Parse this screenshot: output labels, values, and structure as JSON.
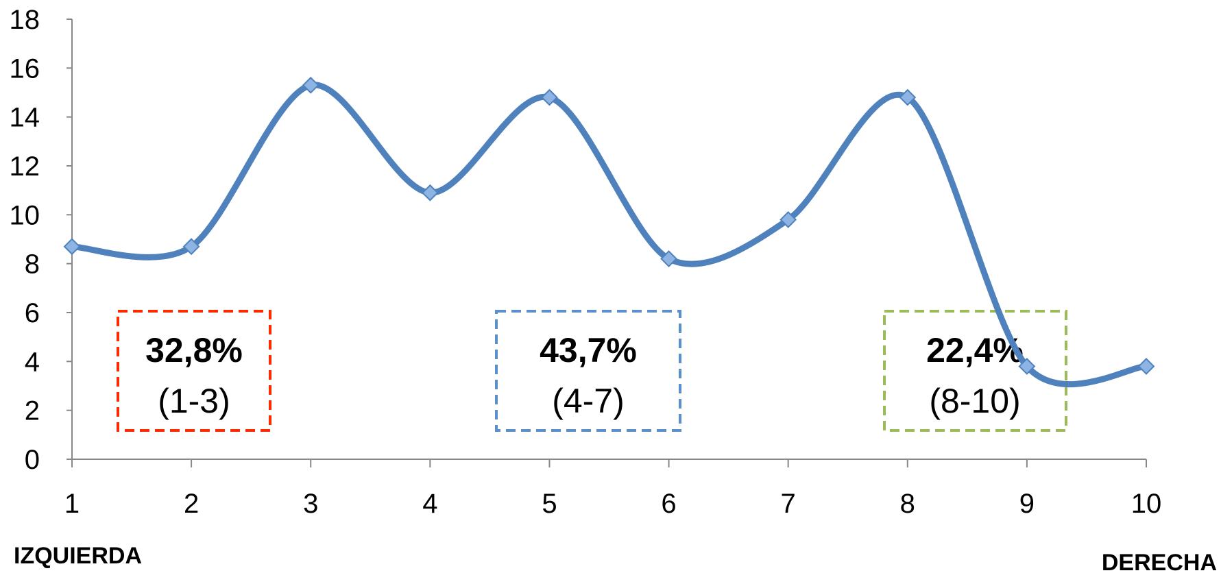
{
  "chart_data": {
    "type": "line",
    "x": [
      1,
      2,
      3,
      4,
      5,
      6,
      7,
      8,
      9,
      10
    ],
    "series": [
      {
        "values": [
          8.7,
          8.7,
          15.3,
          10.9,
          14.8,
          8.2,
          9.8,
          14.8,
          3.8,
          3.8
        ],
        "color": "#4F81BD",
        "marker": "diamond",
        "smooth": true
      }
    ],
    "ylim": [
      0,
      18
    ],
    "xlim": [
      1,
      10
    ],
    "y_ticks": [
      "0",
      "2",
      "4",
      "6",
      "8",
      "10",
      "12",
      "14",
      "16",
      "18"
    ],
    "x_ticks": [
      "1",
      "2",
      "3",
      "4",
      "5",
      "6",
      "7",
      "8",
      "9",
      "10"
    ],
    "grid": false,
    "annotations": [
      {
        "percent": "32,8%",
        "range": "(1-3)",
        "color": "#FF2A00"
      },
      {
        "percent": "43,7%",
        "range": "(4-7)",
        "color": "#5B8FCC"
      },
      {
        "percent": "22,4%",
        "range": "(8-10)",
        "color": "#9BBB59"
      }
    ],
    "axis_end_labels": {
      "left": "IZQUIERDA",
      "right": "DERECHA"
    }
  }
}
